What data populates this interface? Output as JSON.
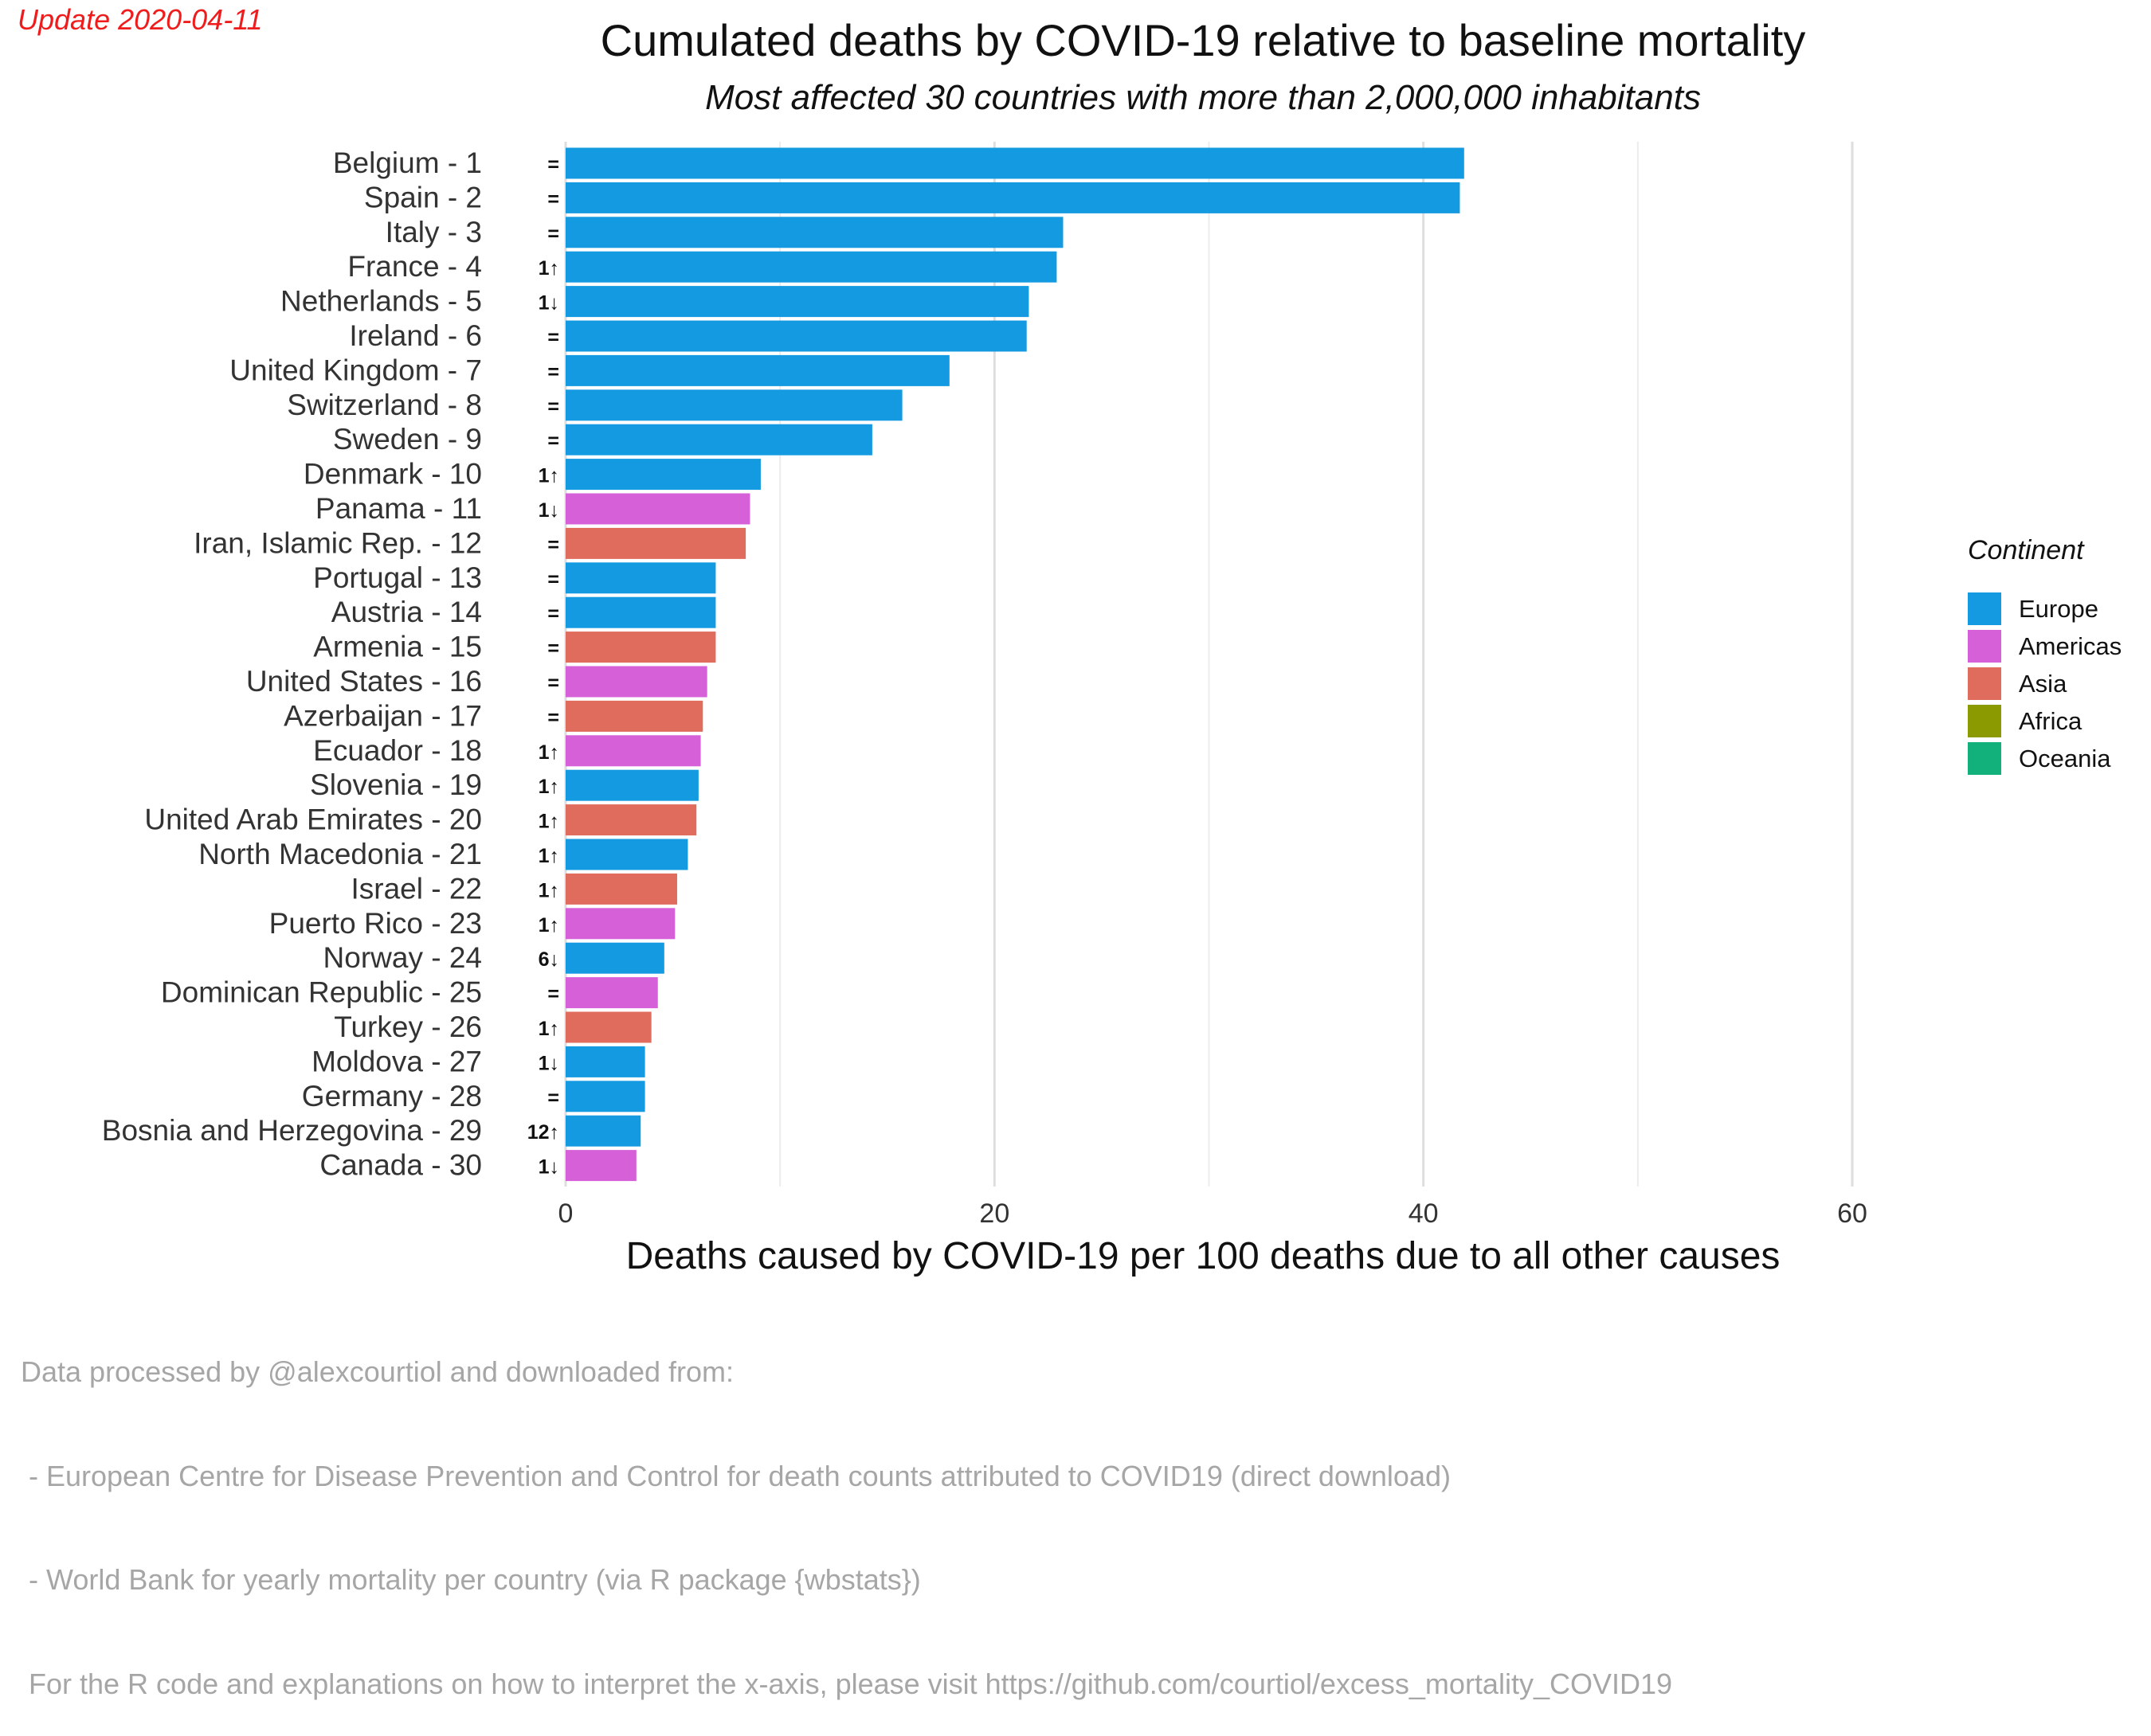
{
  "update_label": "Update 2020-04-11",
  "title": "Cumulated deaths by COVID-19 relative to baseline mortality",
  "subtitle": "Most affected 30 countries with more than 2,000,000 inhabitants",
  "legend": {
    "title": "Continent",
    "items": [
      {
        "label": "Europe",
        "color": "#149ae0"
      },
      {
        "label": "Americas",
        "color": "#d560d8"
      },
      {
        "label": "Asia",
        "color": "#e06c5e"
      },
      {
        "label": "Africa",
        "color": "#8a9a00"
      },
      {
        "label": "Oceania",
        "color": "#12b07a"
      }
    ]
  },
  "caption": {
    "lines": [
      "Data processed by @alexcourtiol and downloaded from:",
      " - European Centre for Disease Prevention and Control for death counts attributed to COVID19 (direct download)",
      " - World Bank for yearly mortality per country (via R package {wbstats})",
      " For the R code and explanations on how to interpret the x-axis, please visit https://github.com/courtiol/excess_mortality_COVID19"
    ]
  },
  "chart_data": {
    "type": "bar",
    "orientation": "horizontal",
    "xlabel": "Deaths caused by COVID-19 per 100 deaths due to all other causes",
    "xlim": [
      0,
      60
    ],
    "xticks": [
      0,
      20,
      40,
      60
    ],
    "grid": true,
    "legend_position": "right",
    "continent_colors": {
      "Europe": "#149ae0",
      "Americas": "#d560d8",
      "Asia": "#e06c5e",
      "Africa": "#8a9a00",
      "Oceania": "#12b07a"
    },
    "categories": [
      "Belgium - 1",
      "Spain - 2",
      "Italy - 3",
      "France - 4",
      "Netherlands - 5",
      "Ireland - 6",
      "United Kingdom - 7",
      "Switzerland - 8",
      "Sweden - 9",
      "Denmark - 10",
      "Panama - 11",
      "Iran, Islamic Rep. - 12",
      "Portugal - 13",
      "Austria - 14",
      "Armenia - 15",
      "United States - 16",
      "Azerbaijan - 17",
      "Ecuador - 18",
      "Slovenia - 19",
      "United Arab Emirates - 20",
      "North Macedonia - 21",
      "Israel - 22",
      "Puerto Rico - 23",
      "Norway - 24",
      "Dominican Republic - 25",
      "Turkey - 26",
      "Moldova - 27",
      "Germany - 28",
      "Bosnia and Herzegovina - 29",
      "Canada - 30"
    ],
    "values": [
      41.9,
      41.7,
      23.2,
      22.9,
      21.6,
      21.5,
      17.9,
      15.7,
      14.3,
      9.1,
      8.6,
      8.4,
      7.0,
      7.0,
      7.0,
      6.6,
      6.4,
      6.3,
      6.2,
      6.1,
      5.7,
      5.2,
      5.1,
      4.6,
      4.3,
      4.0,
      3.7,
      3.7,
      3.5,
      3.3
    ],
    "continents": [
      "Europe",
      "Europe",
      "Europe",
      "Europe",
      "Europe",
      "Europe",
      "Europe",
      "Europe",
      "Europe",
      "Europe",
      "Americas",
      "Asia",
      "Europe",
      "Europe",
      "Asia",
      "Americas",
      "Asia",
      "Americas",
      "Europe",
      "Asia",
      "Europe",
      "Asia",
      "Americas",
      "Europe",
      "Americas",
      "Asia",
      "Europe",
      "Europe",
      "Europe",
      "Americas"
    ],
    "rank_changes": [
      "=",
      "=",
      "=",
      "1↑",
      "1↓",
      "=",
      "=",
      "=",
      "=",
      "1↑",
      "1↓",
      "=",
      "=",
      "=",
      "=",
      "=",
      "=",
      "1↑",
      "1↑",
      "1↑",
      "1↑",
      "1↑",
      "1↑",
      "6↓",
      "=",
      "1↑",
      "1↓",
      "=",
      "12↑",
      "1↓"
    ]
  }
}
